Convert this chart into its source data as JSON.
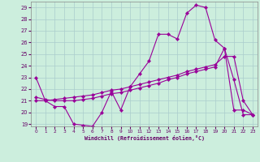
{
  "xlabel": "Windchill (Refroidissement éolien,°C)",
  "background_color": "#cceedd",
  "grid_color": "#aacccc",
  "line_color": "#990099",
  "xlim": [
    -0.5,
    23.5
  ],
  "ylim": [
    18.8,
    29.5
  ],
  "yticks": [
    19,
    20,
    21,
    22,
    23,
    24,
    25,
    26,
    27,
    28,
    29
  ],
  "xticks": [
    0,
    1,
    2,
    3,
    4,
    5,
    6,
    7,
    8,
    9,
    10,
    11,
    12,
    13,
    14,
    15,
    16,
    17,
    18,
    19,
    20,
    21,
    22,
    23
  ],
  "series1_x": [
    0,
    1,
    2,
    3,
    4,
    5,
    6,
    7,
    8,
    9,
    10,
    11,
    12,
    13,
    14,
    15,
    16,
    17,
    18,
    19,
    20,
    21,
    22,
    23
  ],
  "series1_y": [
    23.0,
    21.0,
    20.5,
    20.5,
    19.0,
    18.9,
    18.8,
    20.0,
    21.8,
    20.2,
    22.2,
    23.3,
    24.4,
    26.7,
    26.7,
    26.3,
    28.5,
    29.2,
    29.0,
    26.2,
    25.5,
    20.2,
    20.2,
    19.8
  ],
  "series2_x": [
    0,
    1,
    2,
    3,
    4,
    5,
    6,
    7,
    8,
    9,
    10,
    11,
    12,
    13,
    14,
    15,
    16,
    17,
    18,
    19,
    20,
    21,
    22,
    23
  ],
  "series2_y": [
    21.0,
    21.0,
    21.1,
    21.2,
    21.3,
    21.4,
    21.5,
    21.7,
    21.9,
    22.0,
    22.2,
    22.4,
    22.6,
    22.8,
    23.0,
    23.2,
    23.5,
    23.7,
    23.9,
    24.1,
    24.8,
    24.8,
    21.0,
    19.8
  ],
  "series3_x": [
    0,
    1,
    2,
    3,
    4,
    5,
    6,
    7,
    8,
    9,
    10,
    11,
    12,
    13,
    14,
    15,
    16,
    17,
    18,
    19,
    20,
    21,
    22,
    23
  ],
  "series3_y": [
    21.3,
    21.1,
    21.0,
    21.0,
    21.0,
    21.1,
    21.2,
    21.4,
    21.6,
    21.7,
    21.9,
    22.1,
    22.3,
    22.5,
    22.8,
    23.0,
    23.3,
    23.5,
    23.7,
    23.9,
    25.5,
    22.8,
    19.8,
    19.8
  ]
}
